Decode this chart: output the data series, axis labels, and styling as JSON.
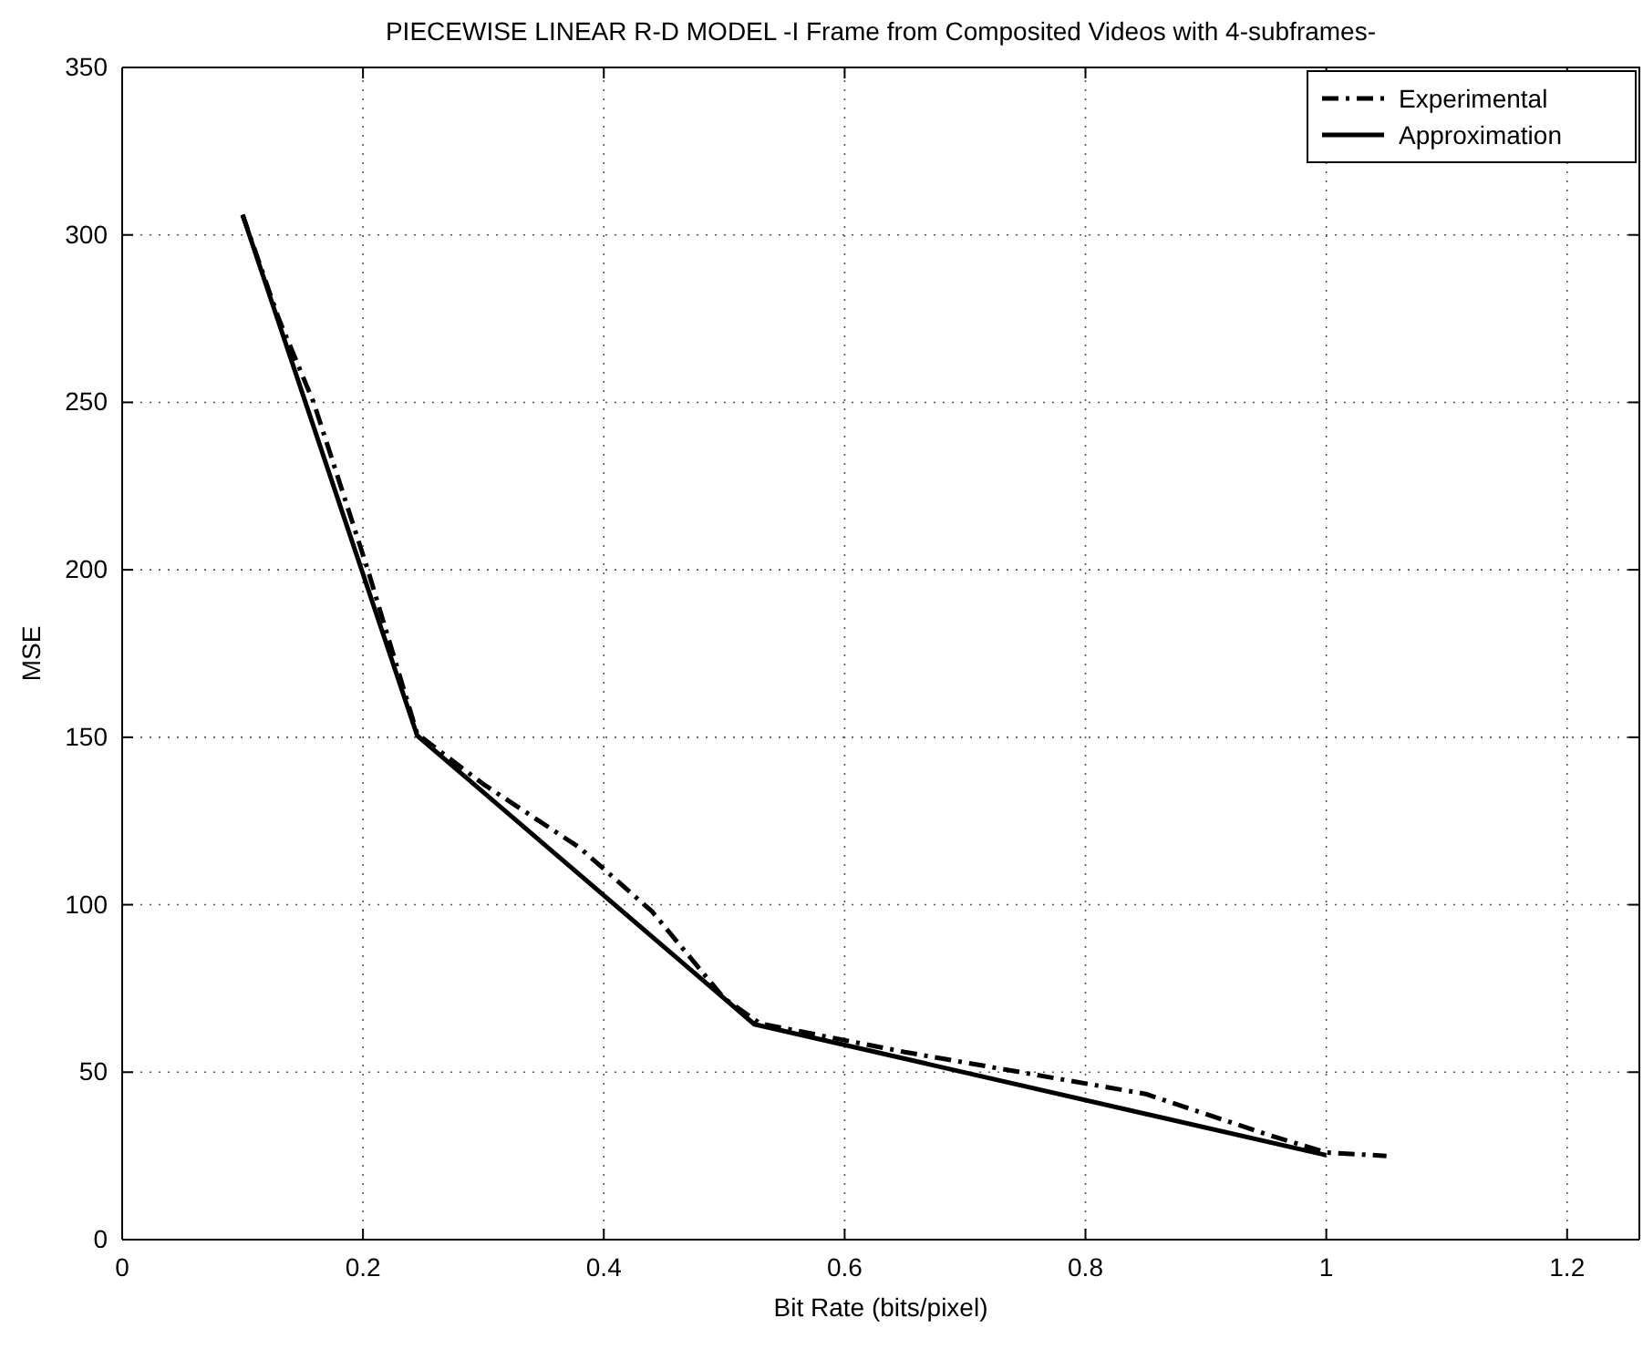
{
  "chart_data": {
    "type": "line",
    "title": "PIECEWISE LINEAR R-D MODEL -I Frame from Composited Videos with 4-subframes-",
    "xlabel": "Bit Rate (bits/pixel)",
    "ylabel": "MSE",
    "xlim": [
      0,
      1.26
    ],
    "xticks": [
      0,
      0.2,
      0.4,
      0.6,
      0.8,
      1,
      1.2
    ],
    "ylim": [
      0,
      350
    ],
    "yticks": [
      0,
      50,
      100,
      150,
      200,
      250,
      300,
      350
    ],
    "grid": true,
    "legend": "top right",
    "marker": "none",
    "series": [
      {
        "name": "Experimental",
        "color": "#000000",
        "line_style": "dashdot",
        "x": [
          0.1,
          0.13,
          0.159,
          0.204,
          0.245,
          0.3,
          0.38,
          0.44,
          0.5,
          0.53,
          0.65,
          0.85,
          0.95,
          1.0,
          1.05
        ],
        "values": [
          306,
          275,
          250,
          200,
          151,
          136,
          117,
          98,
          72,
          64.5,
          56,
          43.5,
          31.5,
          26,
          25
        ]
      },
      {
        "name": "Approximation",
        "color": "#000000",
        "line_style": "solid",
        "x": [
          0.1,
          0.245,
          0.525,
          1.0
        ],
        "values": [
          306,
          150.5,
          64.3,
          25.2
        ]
      }
    ]
  }
}
